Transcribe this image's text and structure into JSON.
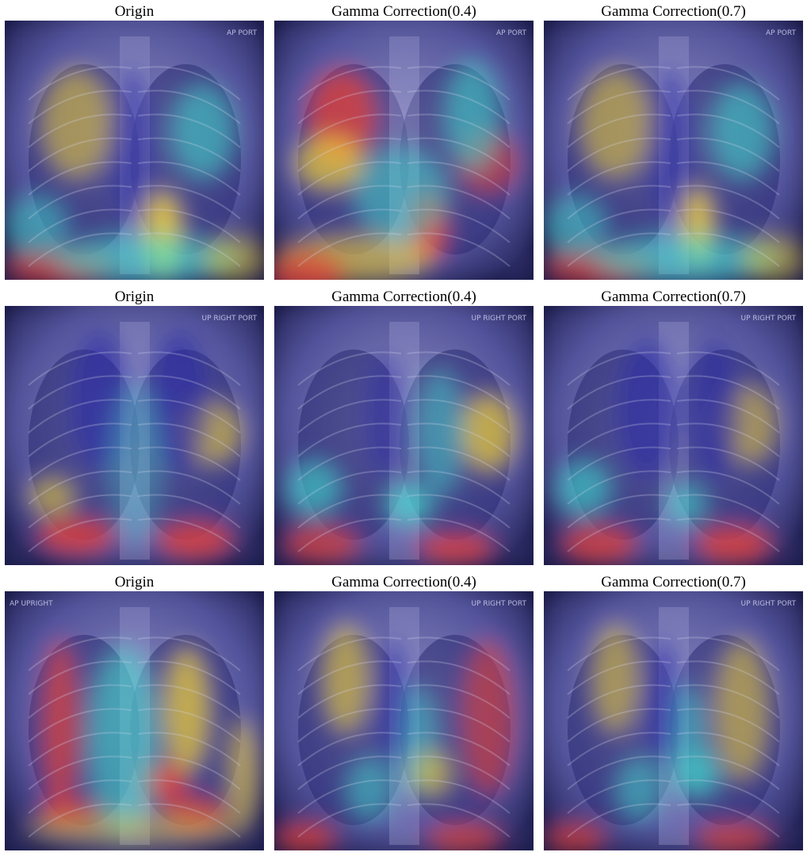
{
  "figure": {
    "rows": [
      {
        "panels": [
          {
            "title": "Origin",
            "image": "chest-xray-gradcam-heatmap",
            "corner_text": "AP PORT"
          },
          {
            "title": "Gamma Correction(0.4)",
            "image": "chest-xray-gradcam-heatmap",
            "corner_text": "AP PORT"
          },
          {
            "title": "Gamma Correction(0.7)",
            "image": "chest-xray-gradcam-heatmap",
            "corner_text": "AP PORT"
          }
        ]
      },
      {
        "panels": [
          {
            "title": "Origin",
            "image": "chest-xray-gradcam-heatmap",
            "corner_text": "UP RIGHT PORT"
          },
          {
            "title": "Gamma Correction(0.4)",
            "image": "chest-xray-gradcam-heatmap",
            "corner_text": "UP RIGHT PORT"
          },
          {
            "title": "Gamma Correction(0.7)",
            "image": "chest-xray-gradcam-heatmap",
            "corner_text": "UP RIGHT PORT"
          }
        ]
      },
      {
        "panels": [
          {
            "title": "Origin",
            "image": "chest-xray-gradcam-heatmap",
            "corner_text": "AP UPRIGHT"
          },
          {
            "title": "Gamma Correction(0.4)",
            "image": "chest-xray-gradcam-heatmap",
            "corner_text": "UP RIGHT PORT"
          },
          {
            "title": "Gamma Correction(0.7)",
            "image": "chest-xray-gradcam-heatmap",
            "corner_text": "UP RIGHT PORT"
          }
        ]
      }
    ]
  },
  "colors": {
    "background": "#ffffff",
    "heat_low": "#2a2aa8",
    "heat_mid": "#3fe0d0",
    "heat_warm": "#f2d23a",
    "heat_hot": "#e8403a",
    "base_tint": "#6f6fd8"
  }
}
